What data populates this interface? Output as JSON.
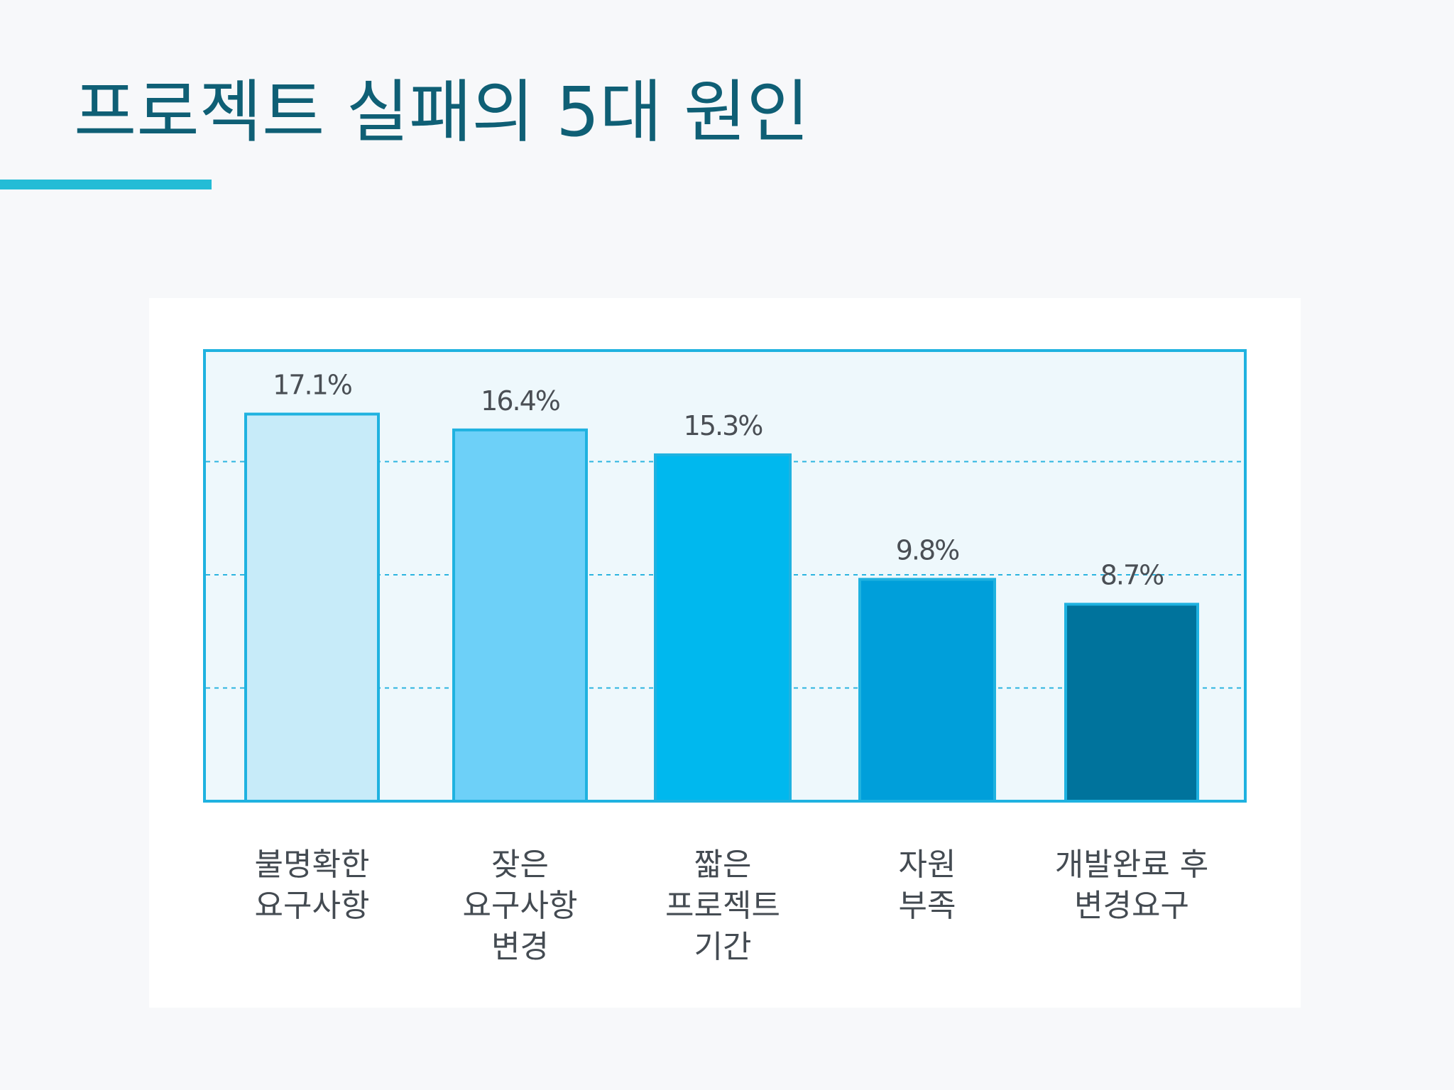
{
  "slide": {
    "title": "프로젝트 실패의 5대 원인"
  },
  "colors": {
    "title": "#0f5f75",
    "accent_line": "#24bcd6",
    "plot_border": "#1fb2e0",
    "plot_background": "#eef8fc",
    "bar_border": "#1fb2e0"
  },
  "chart_data": {
    "type": "bar",
    "title": "",
    "xlabel": "",
    "ylabel": "",
    "ylim": [
      0,
      20
    ],
    "grid": true,
    "gridlines": [
      5,
      10,
      15
    ],
    "categories": [
      [
        "불명확한",
        "요구사항"
      ],
      [
        "잦은",
        "요구사항",
        "변경"
      ],
      [
        "짧은",
        "프로젝트",
        "기간"
      ],
      [
        "자원",
        "부족"
      ],
      [
        "개발완료 후",
        "변경요구"
      ]
    ],
    "values": [
      17.1,
      16.4,
      15.3,
      9.8,
      8.7
    ],
    "value_labels": [
      "17.1%",
      "16.4%",
      "15.3%",
      "9.8%",
      "8.7%"
    ],
    "bar_colors": [
      "#c7ebf9",
      "#6dd0f8",
      "#00b8ee",
      "#009fda",
      "#00739c"
    ]
  }
}
